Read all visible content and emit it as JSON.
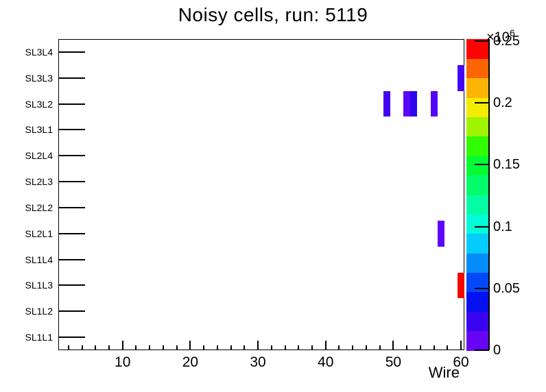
{
  "chart_data": {
    "type": "heatmap",
    "title": "Noisy cells, run: 5119",
    "xlabel": "Wire",
    "grid": false,
    "legend_position": "colorbar-right",
    "x_axis": {
      "min": 0.5,
      "max": 60.5,
      "major_ticks": [
        10,
        20,
        30,
        40,
        50,
        60
      ],
      "minor_tick_step": 2
    },
    "y_categories": [
      "SL1L1",
      "SL1L2",
      "SL1L3",
      "SL1L4",
      "SL2L1",
      "SL2L2",
      "SL2L3",
      "SL2L4",
      "SL3L1",
      "SL3L2",
      "SL3L3",
      "SL3L4"
    ],
    "z_axis": {
      "max": 251700,
      "exponent_prefix": "×10",
      "exponent_power": "6",
      "ticks": [
        {
          "value": 0,
          "label": "0"
        },
        {
          "value": 50000,
          "label": "0.05"
        },
        {
          "value": 100000,
          "label": "0.1"
        },
        {
          "value": 150000,
          "label": "0.15"
        },
        {
          "value": 200000,
          "label": "0.2"
        },
        {
          "value": 250000,
          "label": "0.25"
        }
      ]
    },
    "palette_bottom_to_top": [
      "#6604f4",
      "#3804f0",
      "#0410f0",
      "#0448f8",
      "#048cfa",
      "#04ccfc",
      "#04fcd8",
      "#04fca4",
      "#04fc6c",
      "#04fc34",
      "#30fc04",
      "#a0f404",
      "#f4ec04",
      "#fcb404",
      "#fc6404",
      "#fc0404"
    ],
    "cells": [
      {
        "layer": "SL3L2",
        "wire": 49,
        "value": 20000,
        "color": "#4406f2"
      },
      {
        "layer": "SL3L2",
        "wire": 52,
        "value": 12000,
        "color": "#5c06fa"
      },
      {
        "layer": "SL3L2",
        "wire": 53,
        "value": 26000,
        "color": "#2f06ee"
      },
      {
        "layer": "SL3L2",
        "wire": 56,
        "value": 14000,
        "color": "#5506f8"
      },
      {
        "layer": "SL3L3",
        "wire": 60,
        "value": 20000,
        "color": "#4406f2"
      },
      {
        "layer": "SL2L1",
        "wire": 57,
        "value": 12000,
        "color": "#5c06fa"
      },
      {
        "layer": "SL1L3",
        "wire": 60,
        "value": 251700,
        "color": "#fb0400"
      }
    ]
  }
}
